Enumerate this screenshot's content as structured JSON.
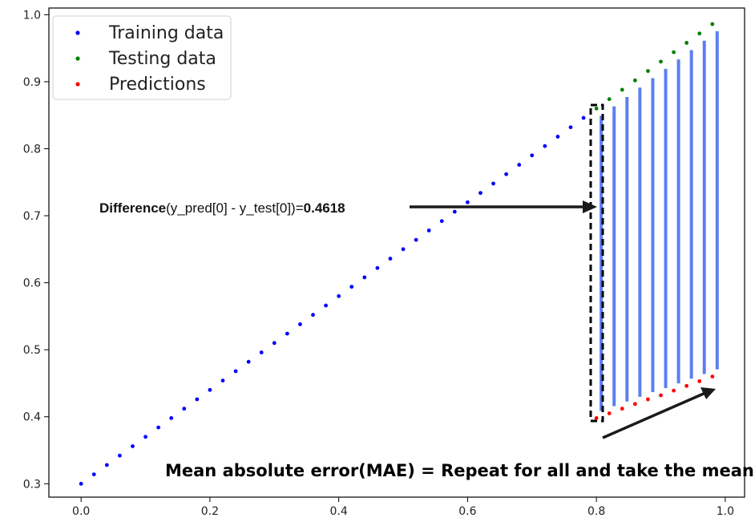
{
  "chart_data": {
    "type": "scatter",
    "xlim": [
      -0.05,
      1.03
    ],
    "ylim": [
      0.28,
      1.01
    ],
    "xticks": [
      0.0,
      0.2,
      0.4,
      0.6,
      0.8,
      1.0
    ],
    "xtick_labels": [
      "0.0",
      "0.2",
      "0.4",
      "0.6",
      "0.8",
      "1.0"
    ],
    "yticks": [
      0.3,
      0.4,
      0.5,
      0.6,
      0.7,
      0.8,
      0.9,
      1.0
    ],
    "ytick_labels": [
      "0.3",
      "0.4",
      "0.5",
      "0.6",
      "0.7",
      "0.8",
      "0.9",
      "1.0"
    ],
    "grid": false,
    "legend_position": "top-left",
    "series": [
      {
        "name": "Training data",
        "color": "#0000ff",
        "x": [
          0.0,
          0.02,
          0.04,
          0.06,
          0.08,
          0.1,
          0.12,
          0.14,
          0.16,
          0.18,
          0.2,
          0.22,
          0.24,
          0.26,
          0.28,
          0.3,
          0.32,
          0.34,
          0.36,
          0.38,
          0.4,
          0.42,
          0.44,
          0.46,
          0.48,
          0.5,
          0.52,
          0.54,
          0.56,
          0.58,
          0.6,
          0.62,
          0.64,
          0.66,
          0.68,
          0.7,
          0.72,
          0.74,
          0.76,
          0.78
        ],
        "y": [
          0.3,
          0.314,
          0.328,
          0.342,
          0.356,
          0.37,
          0.384,
          0.398,
          0.412,
          0.426,
          0.44,
          0.454,
          0.468,
          0.482,
          0.496,
          0.51,
          0.524,
          0.538,
          0.552,
          0.566,
          0.58,
          0.594,
          0.608,
          0.622,
          0.636,
          0.65,
          0.664,
          0.678,
          0.692,
          0.706,
          0.72,
          0.734,
          0.748,
          0.762,
          0.776,
          0.79,
          0.804,
          0.818,
          0.832,
          0.846
        ]
      },
      {
        "name": "Testing data",
        "color": "#008000",
        "x": [
          0.8,
          0.82,
          0.84,
          0.86,
          0.88,
          0.9,
          0.92,
          0.94,
          0.96,
          0.98
        ],
        "y": [
          0.86,
          0.874,
          0.888,
          0.902,
          0.916,
          0.93,
          0.944,
          0.958,
          0.972,
          0.986
        ]
      },
      {
        "name": "Predictions",
        "color": "#ff0000",
        "x": [
          0.8,
          0.82,
          0.84,
          0.86,
          0.88,
          0.9,
          0.92,
          0.94,
          0.96,
          0.98
        ],
        "y": [
          0.398,
          0.405,
          0.412,
          0.419,
          0.426,
          0.432,
          0.439,
          0.446,
          0.453,
          0.46
        ]
      }
    ],
    "error_line_color": "#5b7ff0",
    "annotations": {
      "difference_bold": "Difference",
      "difference_expr": "(y_pred[0] - y_test[0])=",
      "difference_value": "0.4618",
      "mae_text": "Mean absolute error(MAE) = Repeat for all and take the mean"
    }
  }
}
